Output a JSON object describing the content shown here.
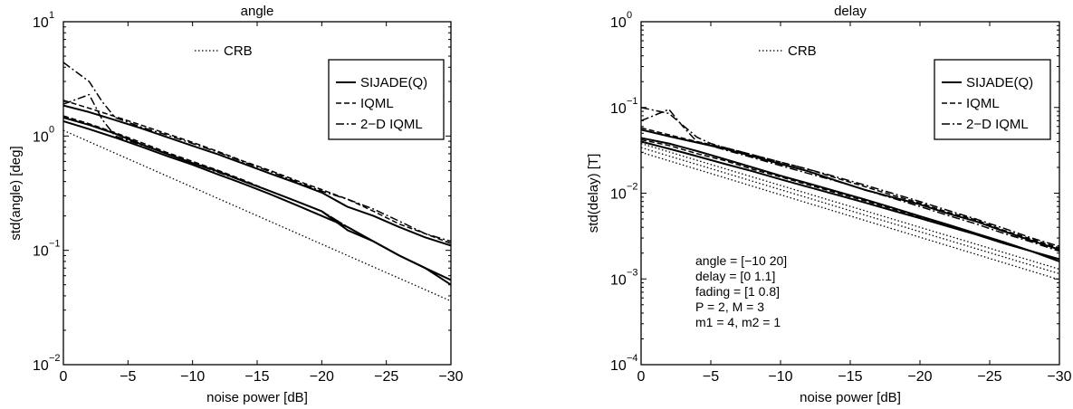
{
  "chart_data": [
    {
      "type": "line",
      "title": "angle",
      "xlabel": "noise power [dB]",
      "ylabel": "std(angle) [deg]",
      "xlim": [
        0,
        -30
      ],
      "x_reversed": true,
      "ylim": [
        0.01,
        10
      ],
      "yscale": "log",
      "xticks": [
        0,
        -5,
        -10,
        -15,
        -20,
        -25,
        -30
      ],
      "xtick_labels": [
        "0",
        "−5",
        "−10",
        "−15",
        "−20",
        "−25",
        "−30"
      ],
      "yticks": [
        {
          "value": 0.01,
          "base": "10",
          "exp": "-2"
        },
        {
          "value": 0.1,
          "base": "10",
          "exp": "-1"
        },
        {
          "value": 1,
          "base": "10",
          "exp": "0"
        },
        {
          "value": 10,
          "base": "10",
          "exp": "1"
        }
      ],
      "grid": false,
      "legend": {
        "placement": "top-right",
        "entries": [
          {
            "label": "SIJADE(Q)",
            "style": "solid"
          },
          {
            "label": "IQML",
            "style": "dashed"
          },
          {
            "label": "2−D IQML",
            "style": "dashdot"
          }
        ]
      },
      "crb_label": "CRB",
      "annotations": [],
      "series": [
        {
          "group": "SIJADE(Q)",
          "style": "solid",
          "x": [
            0,
            -2,
            -4,
            -6,
            -8,
            -10,
            -12,
            -14,
            -16,
            -18,
            -20,
            -22,
            -24,
            -26,
            -28,
            -30
          ],
          "y": [
            1.85,
            1.62,
            1.38,
            1.17,
            0.98,
            0.82,
            0.69,
            0.57,
            0.47,
            0.39,
            0.32,
            0.24,
            0.2,
            0.16,
            0.13,
            0.11
          ]
        },
        {
          "group": "SIJADE(Q)",
          "style": "solid",
          "x": [
            0,
            -2,
            -4,
            -6,
            -8,
            -10,
            -12,
            -14,
            -16,
            -18,
            -20,
            -22,
            -24,
            -26,
            -28,
            -30
          ],
          "y": [
            1.45,
            1.25,
            1.05,
            0.85,
            0.7,
            0.58,
            0.49,
            0.4,
            0.33,
            0.27,
            0.22,
            0.15,
            0.12,
            0.09,
            0.07,
            0.055
          ]
        },
        {
          "group": "SIJADE(Q)",
          "style": "solid",
          "x": [
            0,
            -2,
            -4,
            -6,
            -8,
            -10,
            -12,
            -14,
            -16,
            -18,
            -20,
            -22,
            -24,
            -26,
            -28,
            -30
          ],
          "y": [
            1.35,
            1.15,
            0.97,
            0.81,
            0.67,
            0.56,
            0.46,
            0.38,
            0.31,
            0.25,
            0.2,
            0.16,
            0.12,
            0.09,
            0.07,
            0.05
          ]
        },
        {
          "group": "IQML",
          "style": "dashed",
          "x": [
            0,
            -2,
            -4,
            -6,
            -8,
            -10,
            -12,
            -14,
            -16,
            -18,
            -20,
            -22,
            -24,
            -26,
            -28,
            -30
          ],
          "y": [
            2.05,
            1.75,
            1.48,
            1.25,
            1.05,
            0.88,
            0.73,
            0.6,
            0.5,
            0.41,
            0.34,
            0.28,
            0.22,
            0.17,
            0.14,
            0.115
          ]
        },
        {
          "group": "IQML",
          "style": "dashed",
          "x": [
            0,
            -2,
            -4,
            -6,
            -8,
            -10,
            -12,
            -14,
            -16,
            -18,
            -20,
            -22,
            -24,
            -26,
            -28,
            -30
          ],
          "y": [
            1.5,
            1.28,
            1.07,
            0.88,
            0.72,
            0.6,
            0.5,
            0.41,
            0.33,
            0.27,
            0.22,
            0.16,
            0.12,
            0.09,
            0.07,
            0.055
          ]
        },
        {
          "group": "2−D IQML",
          "style": "dashdot",
          "x": [
            0,
            -2,
            -3,
            -4,
            -6,
            -8,
            -10,
            -12,
            -14,
            -16,
            -18,
            -20,
            -22,
            -24,
            -26,
            -28,
            -30
          ],
          "y": [
            4.4,
            3.0,
            2.0,
            1.45,
            1.2,
            1.02,
            0.86,
            0.72,
            0.59,
            0.49,
            0.4,
            0.33,
            0.28,
            0.23,
            0.18,
            0.14,
            0.12
          ]
        },
        {
          "group": "2−D IQML",
          "style": "dashdot",
          "x": [
            0,
            -2,
            -3,
            -4,
            -6,
            -8,
            -10,
            -12,
            -14,
            -16,
            -18,
            -20,
            -22,
            -24,
            -26,
            -28,
            -30
          ],
          "y": [
            1.9,
            2.3,
            1.4,
            1.0,
            0.84,
            0.7,
            0.58,
            0.48,
            0.4,
            0.33,
            0.27,
            0.22,
            0.16,
            0.12,
            0.09,
            0.07,
            0.055
          ]
        },
        {
          "group": "CRB",
          "style": "dotted",
          "x": [
            0,
            -30
          ],
          "y": [
            1.12,
            0.036
          ]
        }
      ]
    },
    {
      "type": "line",
      "title": "delay",
      "xlabel": "noise power [dB]",
      "ylabel": "std(delay) [T]",
      "xlim": [
        0,
        -30
      ],
      "x_reversed": true,
      "ylim": [
        0.0001,
        1
      ],
      "yscale": "log",
      "xticks": [
        0,
        -5,
        -10,
        -15,
        -20,
        -25,
        -30
      ],
      "xtick_labels": [
        "0",
        "−5",
        "−10",
        "−15",
        "−20",
        "−25",
        "−30"
      ],
      "yticks": [
        {
          "value": 0.0001,
          "base": "10",
          "exp": "-4"
        },
        {
          "value": 0.001,
          "base": "10",
          "exp": "-3"
        },
        {
          "value": 0.01,
          "base": "10",
          "exp": "-2"
        },
        {
          "value": 0.1,
          "base": "10",
          "exp": "-1"
        },
        {
          "value": 1,
          "base": "10",
          "exp": "0"
        }
      ],
      "grid": false,
      "legend": {
        "placement": "top-right",
        "entries": [
          {
            "label": "SIJADE(Q)",
            "style": "solid"
          },
          {
            "label": "IQML",
            "style": "dashed"
          },
          {
            "label": "2−D IQML",
            "style": "dashdot"
          }
        ]
      },
      "crb_label": "CRB",
      "annotations": [
        "angle = [−10 20]",
        "delay = [0 1.1]",
        "fading = [1 0.8]",
        "P = 2, M = 3",
        "m1 = 4, m2 = 1"
      ],
      "series": [
        {
          "group": "SIJADE(Q)",
          "style": "solid",
          "x": [
            0,
            -2,
            -4,
            -6,
            -8,
            -10,
            -12,
            -14,
            -16,
            -18,
            -20,
            -22,
            -24,
            -26,
            -28,
            -30
          ],
          "y": [
            0.055,
            0.046,
            0.039,
            0.033,
            0.027,
            0.022,
            0.018,
            0.014,
            0.011,
            0.009,
            0.0074,
            0.0058,
            0.0047,
            0.0036,
            0.0028,
            0.0022
          ]
        },
        {
          "group": "SIJADE(Q)",
          "style": "solid",
          "x": [
            0,
            -2,
            -4,
            -6,
            -8,
            -10,
            -12,
            -14,
            -16,
            -18,
            -20,
            -22,
            -24,
            -26,
            -28,
            -30
          ],
          "y": [
            0.044,
            0.038,
            0.031,
            0.025,
            0.02,
            0.016,
            0.013,
            0.0105,
            0.0085,
            0.0068,
            0.0054,
            0.0043,
            0.0034,
            0.0027,
            0.0021,
            0.0017
          ]
        },
        {
          "group": "SIJADE(Q)",
          "style": "solid",
          "x": [
            0,
            -2,
            -4,
            -6,
            -8,
            -10,
            -12,
            -14,
            -16,
            -18,
            -20,
            -22,
            -24,
            -26,
            -28,
            -30
          ],
          "y": [
            0.04,
            0.033,
            0.027,
            0.022,
            0.018,
            0.0145,
            0.0118,
            0.0096,
            0.0078,
            0.0063,
            0.0051,
            0.0041,
            0.0033,
            0.0026,
            0.0021,
            0.0016
          ]
        },
        {
          "group": "IQML",
          "style": "dashed",
          "x": [
            0,
            -2,
            -4,
            -6,
            -8,
            -10,
            -12,
            -14,
            -16,
            -18,
            -20,
            -22,
            -24,
            -26,
            -28,
            -30
          ],
          "y": [
            0.058,
            0.048,
            0.04,
            0.034,
            0.028,
            0.023,
            0.019,
            0.015,
            0.012,
            0.0095,
            0.0077,
            0.006,
            0.0049,
            0.0037,
            0.0029,
            0.0023
          ]
        },
        {
          "group": "IQML",
          "style": "dashed",
          "x": [
            0,
            -2,
            -4,
            -6,
            -8,
            -10,
            -12,
            -14,
            -16,
            -18,
            -20,
            -22,
            -24,
            -26,
            -28,
            -30
          ],
          "y": [
            0.042,
            0.036,
            0.029,
            0.024,
            0.019,
            0.0155,
            0.0125,
            0.0101,
            0.0082,
            0.0066,
            0.0053,
            0.0042,
            0.0034,
            0.0027,
            0.0021,
            0.0017
          ]
        },
        {
          "group": "2−D IQML",
          "style": "dashdot",
          "x": [
            0,
            -2,
            -4,
            -5,
            -6,
            -8,
            -10,
            -12,
            -14,
            -16,
            -18,
            -20,
            -22,
            -24,
            -26,
            -28,
            -30
          ],
          "y": [
            0.1,
            0.085,
            0.045,
            0.038,
            0.034,
            0.028,
            0.023,
            0.019,
            0.0155,
            0.0125,
            0.01,
            0.008,
            0.0063,
            0.005,
            0.0039,
            0.003,
            0.0024
          ]
        },
        {
          "group": "2−D IQML",
          "style": "dashdot",
          "x": [
            0,
            -2,
            -3,
            -4,
            -6,
            -8,
            -10,
            -12,
            -14,
            -16,
            -18,
            -20,
            -22,
            -24,
            -26,
            -28,
            -30
          ],
          "y": [
            0.07,
            0.095,
            0.06,
            0.04,
            0.032,
            0.026,
            0.021,
            0.017,
            0.0138,
            0.011,
            0.0088,
            0.007,
            0.0055,
            0.0044,
            0.0034,
            0.0027,
            0.0021
          ]
        },
        {
          "group": "CRB",
          "style": "dotted",
          "x": [
            0,
            -30
          ],
          "y": [
            0.038,
            0.0013
          ]
        },
        {
          "group": "CRB",
          "style": "dotted",
          "x": [
            0,
            -30
          ],
          "y": [
            0.034,
            0.00115
          ]
        },
        {
          "group": "CRB",
          "style": "dotted",
          "x": [
            0,
            -30
          ],
          "y": [
            0.03,
            0.00098
          ]
        }
      ]
    }
  ]
}
